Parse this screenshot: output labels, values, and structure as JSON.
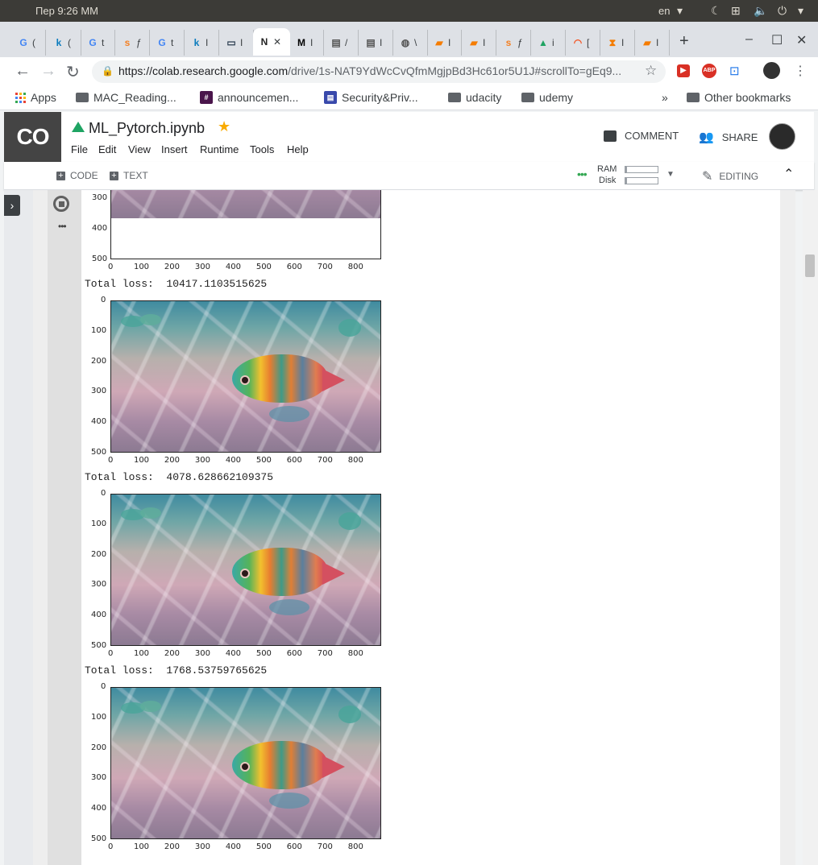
{
  "os_bar": {
    "clock": "Пер  9:26 ΜΜ",
    "lang": "en"
  },
  "tabs": [
    {
      "icon": "G",
      "label": "("
    },
    {
      "icon": "k",
      "label": "("
    },
    {
      "icon": "G",
      "label": "t"
    },
    {
      "icon": "s",
      "label": "ƒ"
    },
    {
      "icon": "G",
      "label": "t"
    },
    {
      "icon": "k",
      "label": "I"
    },
    {
      "icon": "▭",
      "label": "I"
    },
    {
      "icon": "N",
      "label": "✕",
      "active": true
    },
    {
      "icon": "M",
      "label": "I"
    },
    {
      "icon": "▤",
      "label": "/"
    },
    {
      "icon": "▤",
      "label": "I"
    },
    {
      "icon": "◍",
      "label": "\\"
    },
    {
      "icon": "▰",
      "label": "I"
    },
    {
      "icon": "▰",
      "label": "I"
    },
    {
      "icon": "s",
      "label": "ƒ"
    },
    {
      "icon": "▲",
      "label": "i"
    },
    {
      "icon": "◠",
      "label": "["
    },
    {
      "icon": "⧗",
      "label": "I"
    },
    {
      "icon": "▰",
      "label": "I"
    }
  ],
  "browser": {
    "url_host": "https://colab.research.google.com",
    "url_path": "/drive/1s-NAT9YdWcCvQfmMgjpBd3Hc61or5U1J#scrollTo=gEq9..."
  },
  "bookmarks": [
    "Apps",
    "MAC_Reading...",
    "announcemen...",
    "Security&Priv...",
    "udacity",
    "udemy",
    "»",
    "Other bookmarks"
  ],
  "colab": {
    "logo": "CO",
    "title": "ML_Pytorch.ipynb",
    "menu": [
      "File",
      "Edit",
      "View",
      "Insert",
      "Runtime",
      "Tools",
      "Help"
    ],
    "comment": "COMMENT",
    "share": "SHARE",
    "code_btn": "CODE",
    "text_btn": "TEXT",
    "ram": "RAM",
    "disk": "Disk",
    "editing": "EDITING"
  },
  "outputs": [
    {
      "loss": "Total loss:  10417.1103515625"
    },
    {
      "loss": "Total loss:  4078.628662109375"
    },
    {
      "loss": "Total loss:  1768.53759765625"
    }
  ],
  "axis": {
    "yticks": [
      "0",
      "100",
      "200",
      "300",
      "400",
      "500"
    ],
    "xticks": [
      "0",
      "100",
      "200",
      "300",
      "400",
      "500",
      "600",
      "700",
      "800"
    ],
    "partial_yticks": [
      "300",
      "400",
      "500"
    ]
  },
  "colors": {
    "accent": "#f9ab00",
    "omnibox": "#f1f3f4",
    "logo_bg": "#444444"
  }
}
